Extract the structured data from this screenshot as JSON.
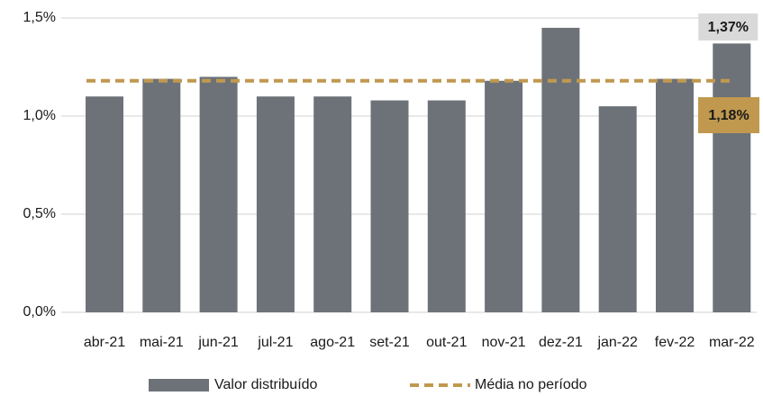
{
  "chart_data": {
    "type": "bar",
    "categories": [
      "abr-21",
      "mai-21",
      "jun-21",
      "jul-21",
      "ago-21",
      "set-21",
      "out-21",
      "nov-21",
      "dez-21",
      "jan-22",
      "fev-22",
      "mar-22"
    ],
    "series": [
      {
        "name": "Valor distribuído",
        "color": "#6d7278",
        "values": [
          1.1,
          1.19,
          1.2,
          1.1,
          1.1,
          1.08,
          1.08,
          1.18,
          1.45,
          1.05,
          1.19,
          1.37
        ],
        "value_labels": [
          null,
          null,
          null,
          null,
          null,
          null,
          null,
          null,
          null,
          null,
          null,
          "1,37%"
        ]
      }
    ],
    "average": {
      "name": "Média no período",
      "color": "#c0994f",
      "value": 1.18,
      "value_label": "1,18%"
    },
    "ylim": [
      0,
      1.5
    ],
    "yticks": [
      {
        "value": 0,
        "label": "0,0%"
      },
      {
        "value": 0.5,
        "label": "0,5%"
      },
      {
        "value": 1.0,
        "label": "1,0%"
      },
      {
        "value": 1.5,
        "label": "1,5%"
      }
    ],
    "grid": true
  }
}
